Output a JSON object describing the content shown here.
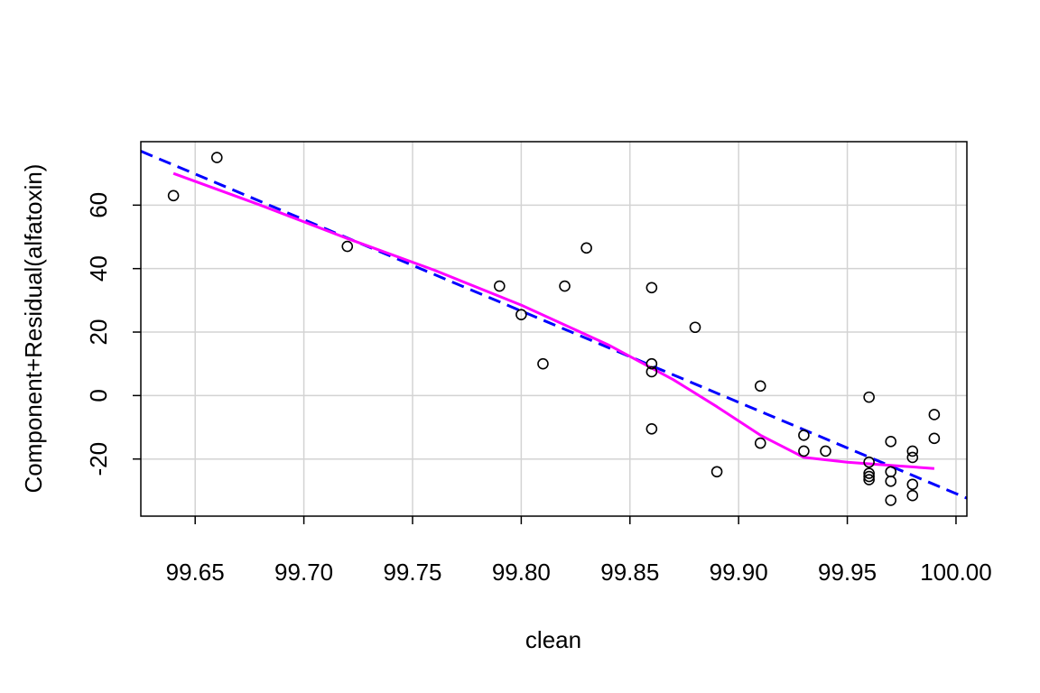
{
  "chart_data": {
    "type": "scatter",
    "title": "",
    "xlabel": "clean",
    "ylabel": "Component+Residual(alfatoxin)",
    "xlim": [
      99.625,
      100.005
    ],
    "ylim": [
      -38,
      80
    ],
    "x_ticks": [
      99.65,
      99.7,
      99.75,
      99.8,
      99.85,
      99.9,
      99.95,
      100.0
    ],
    "x_tick_labels": [
      "99.65",
      "99.70",
      "99.75",
      "99.80",
      "99.85",
      "99.90",
      "99.95",
      "100.00"
    ],
    "y_ticks": [
      -20,
      0,
      20,
      40,
      60
    ],
    "y_tick_labels": [
      "-20",
      "0",
      "20",
      "40",
      "60"
    ],
    "grid": true,
    "points": [
      {
        "x": 99.64,
        "y": 63
      },
      {
        "x": 99.66,
        "y": 75
      },
      {
        "x": 99.72,
        "y": 47
      },
      {
        "x": 99.79,
        "y": 34.5
      },
      {
        "x": 99.8,
        "y": 25.5
      },
      {
        "x": 99.81,
        "y": 10
      },
      {
        "x": 99.82,
        "y": 34.5
      },
      {
        "x": 99.83,
        "y": 46.5
      },
      {
        "x": 99.86,
        "y": 34
      },
      {
        "x": 99.86,
        "y": 10
      },
      {
        "x": 99.86,
        "y": 7.5
      },
      {
        "x": 99.86,
        "y": -10.5
      },
      {
        "x": 99.88,
        "y": 21.5
      },
      {
        "x": 99.89,
        "y": -24
      },
      {
        "x": 99.91,
        "y": 3
      },
      {
        "x": 99.91,
        "y": -15
      },
      {
        "x": 99.93,
        "y": -12.5
      },
      {
        "x": 99.93,
        "y": -17.5
      },
      {
        "x": 99.94,
        "y": -17.5
      },
      {
        "x": 99.96,
        "y": -0.5
      },
      {
        "x": 99.96,
        "y": -21
      },
      {
        "x": 99.96,
        "y": -24.5
      },
      {
        "x": 99.96,
        "y": -25.5
      },
      {
        "x": 99.96,
        "y": -26.5
      },
      {
        "x": 99.97,
        "y": -14.5
      },
      {
        "x": 99.97,
        "y": -24
      },
      {
        "x": 99.97,
        "y": -27
      },
      {
        "x": 99.97,
        "y": -33
      },
      {
        "x": 99.98,
        "y": -17.5
      },
      {
        "x": 99.98,
        "y": -19.5
      },
      {
        "x": 99.98,
        "y": -28
      },
      {
        "x": 99.98,
        "y": -31.5
      },
      {
        "x": 99.99,
        "y": -6
      },
      {
        "x": 99.99,
        "y": -13.5
      }
    ],
    "linear_fit": {
      "slope": -287.73,
      "x0": 99.625,
      "y0": 77.0,
      "color": "#0000ff",
      "style": "dashed"
    },
    "smooth_fit": {
      "color": "#ff00ff",
      "x": [
        99.64,
        99.68,
        99.72,
        99.76,
        99.8,
        99.84,
        99.87,
        99.89,
        99.91,
        99.93,
        99.95,
        99.97,
        99.99
      ],
      "y": [
        70.0,
        60.0,
        49.5,
        39.5,
        28.5,
        16.0,
        5.0,
        -3.5,
        -12.5,
        -19.5,
        -21.0,
        -22.0,
        -23.0
      ]
    }
  }
}
